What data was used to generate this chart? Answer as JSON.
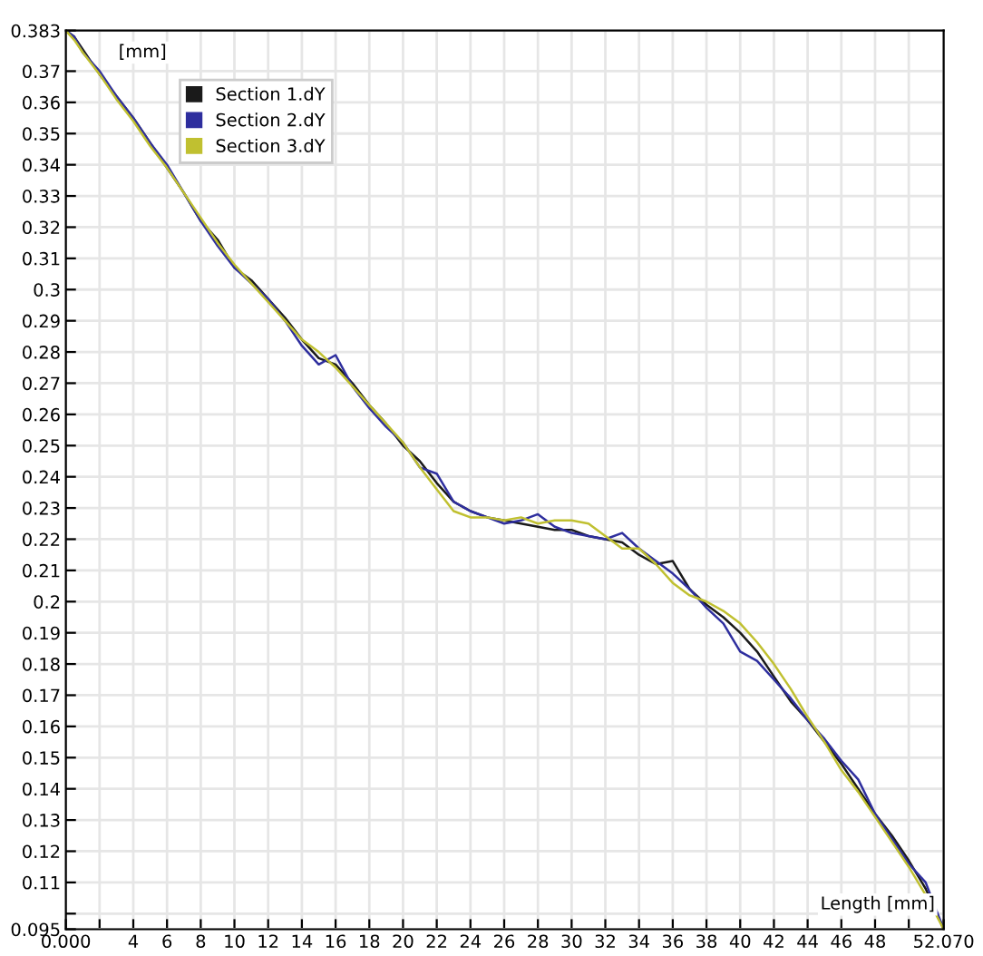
{
  "chart_data": {
    "type": "line",
    "xlabel": "Length [mm]",
    "ylabel": "[mm]",
    "x": [
      0,
      0.5,
      1,
      2,
      3,
      4,
      5,
      6,
      7,
      8,
      9,
      10,
      11,
      12,
      13,
      14,
      15,
      16,
      17,
      18,
      19,
      20,
      21,
      22,
      23,
      24,
      25,
      26,
      27,
      28,
      29,
      30,
      31,
      32,
      33,
      34,
      35,
      36,
      37,
      38,
      39,
      40,
      41,
      42,
      43,
      44,
      45,
      46,
      47,
      48,
      49,
      50,
      51,
      52.07
    ],
    "series": [
      {
        "name": "Section 1.dY",
        "color": "#1a1a1a",
        "values": [
          0.383,
          0.381,
          0.377,
          0.369,
          0.362,
          0.355,
          0.347,
          0.339,
          0.331,
          0.322,
          0.316,
          0.307,
          0.303,
          0.297,
          0.291,
          0.284,
          0.278,
          0.276,
          0.27,
          0.263,
          0.257,
          0.25,
          0.245,
          0.238,
          0.232,
          0.229,
          0.227,
          0.226,
          0.225,
          0.224,
          0.223,
          0.223,
          0.221,
          0.22,
          0.219,
          0.215,
          0.212,
          0.213,
          0.204,
          0.199,
          0.195,
          0.19,
          0.184,
          0.176,
          0.168,
          0.162,
          0.155,
          0.148,
          0.14,
          0.132,
          0.125,
          0.117,
          0.108,
          0.095
        ]
      },
      {
        "name": "Section 2.dY",
        "color": "#2e2e9e",
        "values": [
          0.383,
          0.381,
          0.376,
          0.37,
          0.362,
          0.355,
          0.347,
          0.34,
          0.331,
          0.322,
          0.314,
          0.307,
          0.302,
          0.297,
          0.29,
          0.282,
          0.276,
          0.279,
          0.269,
          0.262,
          0.256,
          0.251,
          0.243,
          0.241,
          0.232,
          0.229,
          0.227,
          0.225,
          0.226,
          0.228,
          0.224,
          0.222,
          0.221,
          0.22,
          0.222,
          0.217,
          0.213,
          0.209,
          0.204,
          0.198,
          0.193,
          0.184,
          0.181,
          0.175,
          0.169,
          0.162,
          0.156,
          0.149,
          0.143,
          0.132,
          0.124,
          0.116,
          0.11,
          0.095
        ]
      },
      {
        "name": "Section 3.dY",
        "color": "#c0c030",
        "values": [
          0.383,
          0.38,
          0.376,
          0.369,
          0.361,
          0.354,
          0.346,
          0.339,
          0.331,
          0.323,
          0.315,
          0.308,
          0.302,
          0.296,
          0.29,
          0.284,
          0.28,
          0.275,
          0.269,
          0.263,
          0.257,
          0.251,
          0.243,
          0.236,
          0.229,
          0.227,
          0.227,
          0.226,
          0.227,
          0.225,
          0.226,
          0.226,
          0.225,
          0.221,
          0.217,
          0.217,
          0.212,
          0.206,
          0.202,
          0.2,
          0.197,
          0.193,
          0.187,
          0.18,
          0.172,
          0.163,
          0.155,
          0.146,
          0.139,
          0.131,
          0.123,
          0.115,
          0.106,
          0.095
        ]
      }
    ],
    "xlim": [
      0,
      52.07
    ],
    "xticks": [
      {
        "value": 0,
        "label": "0.000"
      },
      {
        "value": 2,
        "label": null
      },
      4,
      6,
      8,
      10,
      12,
      14,
      16,
      18,
      20,
      22,
      24,
      26,
      28,
      30,
      32,
      34,
      36,
      38,
      40,
      42,
      44,
      46,
      48,
      {
        "value": 50,
        "label": null
      },
      {
        "value": 52.07,
        "label": "52.070"
      }
    ],
    "ylim": [
      0.095,
      0.383
    ],
    "yticks": [
      {
        "value": 0.095,
        "label": "0.095"
      },
      {
        "value": 0.1,
        "label": null
      },
      0.11,
      0.12,
      0.13,
      0.14,
      0.15,
      0.16,
      0.17,
      0.18,
      0.19,
      0.2,
      0.21,
      0.22,
      0.23,
      0.24,
      0.25,
      0.26,
      0.27,
      0.28,
      0.29,
      0.3,
      0.31,
      0.32,
      0.33,
      0.34,
      0.35,
      0.36,
      0.37,
      {
        "value": 0.383,
        "label": "0.383"
      }
    ],
    "grid": true,
    "legend": "top left",
    "marker": "none",
    "line_style": "solid"
  }
}
